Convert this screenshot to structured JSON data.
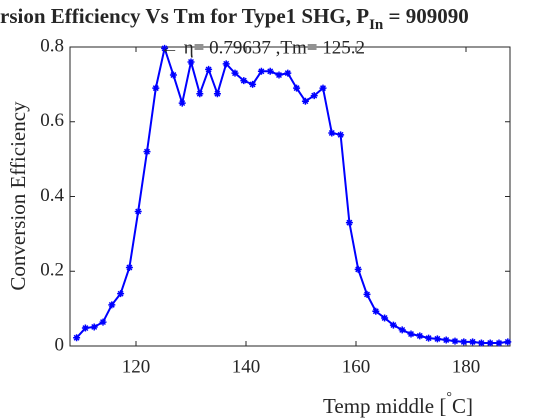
{
  "chart_data": {
    "type": "line",
    "title_parts": [
      "rsion Efficiency Vs Tm for Type1 SHG, P",
      "In",
      " = 909090"
    ],
    "annotation": "← η= 0.79637 ,Tm= 125.2",
    "xlabel_parts": [
      "Temp middle [",
      "°",
      "C]"
    ],
    "ylabel": "Conversion Efficiency",
    "xlim": [
      108,
      188
    ],
    "xticks": [
      120,
      140,
      160,
      180
    ],
    "ylim": [
      0,
      0.8
    ],
    "yticks": [
      0,
      0.2,
      0.4,
      0.6,
      0.8
    ],
    "series": [
      {
        "color": "#0000ff",
        "x": [
          109.2,
          110.8,
          112.4,
          114,
          115.6,
          117.2,
          118.8,
          120.4,
          122,
          123.6,
          125.2,
          126.8,
          128.4,
          130,
          131.6,
          133.2,
          134.8,
          136.4,
          138,
          139.6,
          141.2,
          142.8,
          144.4,
          146,
          147.6,
          149.2,
          150.8,
          152.4,
          154,
          155.6,
          157.2,
          158.8,
          160.4,
          162,
          163.6,
          165.2,
          166.8,
          168.4,
          170,
          171.6,
          173.2,
          174.8,
          176.4,
          178,
          179.6,
          181.2,
          182.8,
          184.4,
          186,
          187.6
        ],
        "values": [
          0.022,
          0.048,
          0.051,
          0.064,
          0.11,
          0.14,
          0.21,
          0.36,
          0.52,
          0.69,
          0.79637,
          0.725,
          0.65,
          0.76,
          0.675,
          0.74,
          0.675,
          0.755,
          0.73,
          0.71,
          0.7,
          0.735,
          0.735,
          0.725,
          0.73,
          0.69,
          0.655,
          0.67,
          0.69,
          0.57,
          0.565,
          0.33,
          0.205,
          0.138,
          0.093,
          0.075,
          0.056,
          0.043,
          0.032,
          0.027,
          0.021,
          0.019,
          0.016,
          0.013,
          0.011,
          0.011,
          0.008,
          0.008,
          0.008,
          0.011
        ]
      }
    ]
  }
}
